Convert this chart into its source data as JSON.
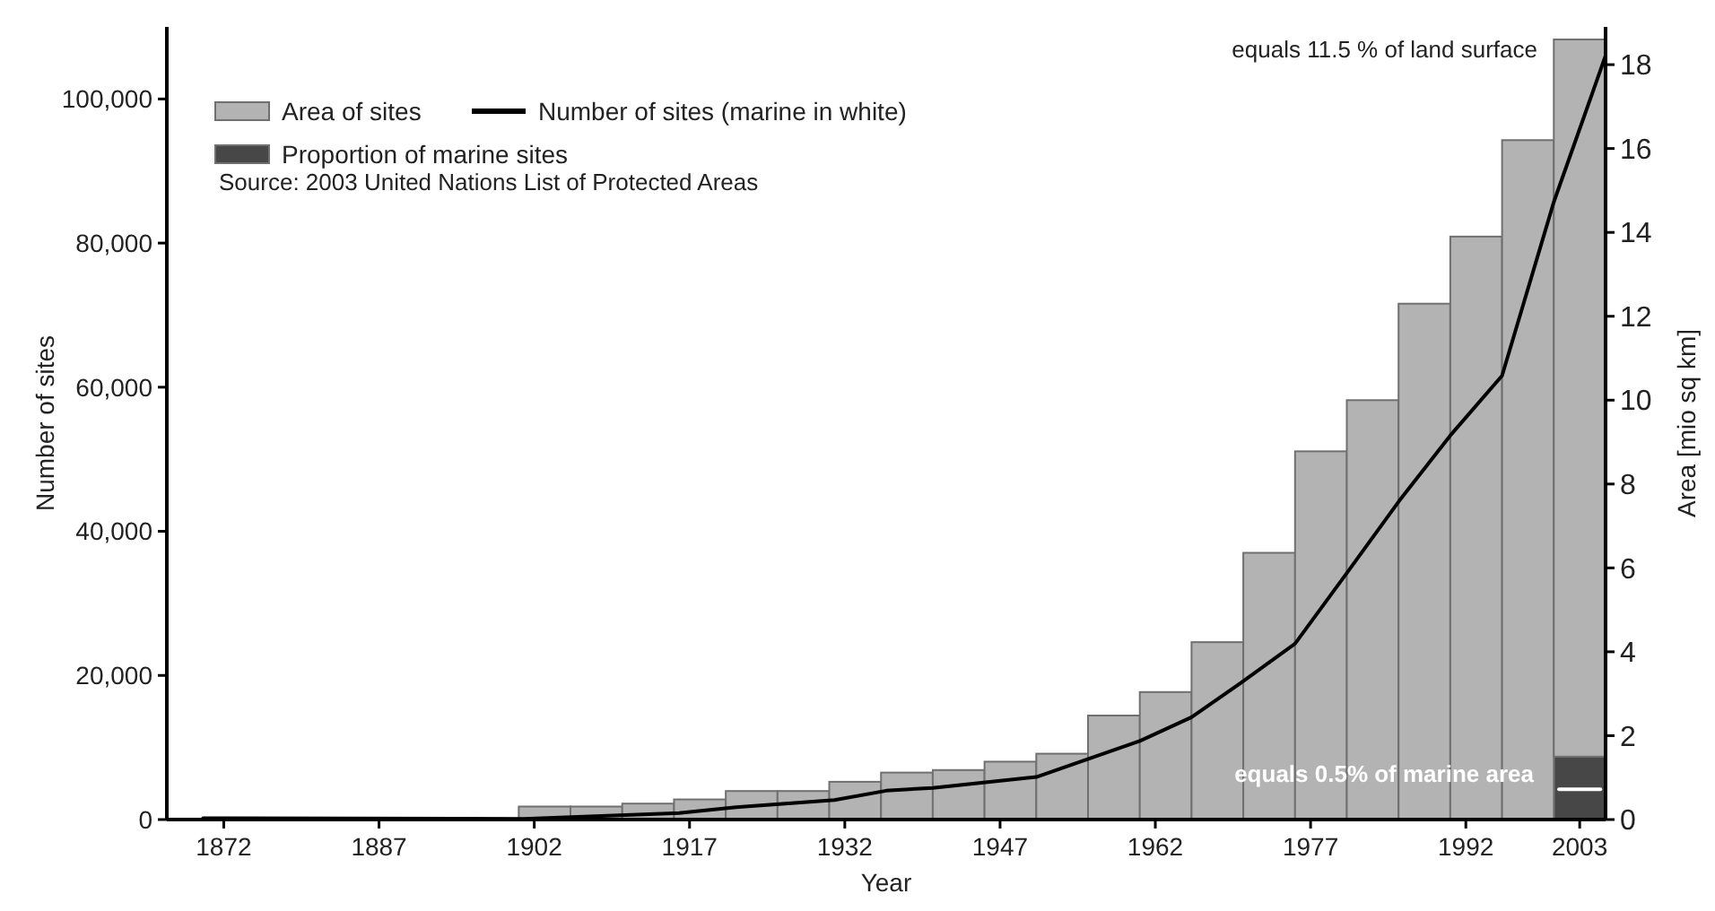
{
  "chart_data": {
    "type": "bar",
    "xlabel": "Year",
    "ylabel": "Number of sites",
    "y2label": "Area [mio sq km]",
    "x": [
      1903,
      1908,
      1913,
      1918,
      1923,
      1928,
      1933,
      1938,
      1943,
      1948,
      1953,
      1958,
      1963,
      1968,
      1973,
      1978,
      1983,
      1988,
      1993,
      1998,
      2003
    ],
    "stacked": true,
    "series": [
      {
        "name": "Proportion of marine sites",
        "axis": "y2",
        "color": "#474747",
        "values": [
          null,
          null,
          null,
          null,
          null,
          null,
          null,
          null,
          null,
          null,
          null,
          null,
          null,
          null,
          null,
          null,
          null,
          null,
          null,
          null,
          1.5
        ]
      },
      {
        "name": "Area of sites",
        "axis": "y2",
        "color": "#b3b3b3",
        "values": [
          0.31,
          0.31,
          0.38,
          0.48,
          0.68,
          0.68,
          0.9,
          1.12,
          1.18,
          1.38,
          1.57,
          2.48,
          3.04,
          4.23,
          6.36,
          8.78,
          10.0,
          12.3,
          13.9,
          16.2,
          17.1
        ]
      },
      {
        "name": "Number of sites (marine in white)",
        "type": "line",
        "color": "#000000",
        "x": [
          1870,
          1901,
          1916,
          1921.5,
          1931,
          1936,
          1940.5,
          1950.5,
          1960.5,
          1965.5,
          1970.5,
          1975.5,
          1980.5,
          1985.5,
          1990.5,
          1995.5,
          2000.5,
          2005.5
        ],
        "values": [
          200,
          100,
          900,
          1700,
          2700,
          4000,
          4400,
          5900,
          10900,
          14200,
          19200,
          24400,
          34200,
          44100,
          53300,
          61600,
          85700,
          106000
        ]
      },
      {
        "type": "line",
        "color": "#ffffff",
        "x": [
          2001,
          2005
        ],
        "values": [
          4200,
          4200
        ]
      }
    ],
    "xlim": [
      1866.5,
      2005.5
    ],
    "xticks": [
      1872,
      1887,
      1902,
      1917,
      1932,
      1947,
      1962,
      1977,
      1992,
      2003
    ],
    "ylim": [
      0,
      110000
    ],
    "yticks": [
      0,
      {
        "value": 20000,
        "label": "20,000"
      },
      {
        "value": 40000,
        "label": "40,000"
      },
      {
        "value": 60000,
        "label": "60,000"
      },
      {
        "value": 80000,
        "label": "80,000"
      },
      {
        "value": 100000,
        "label": "100,000"
      }
    ],
    "y2lim": [
      0,
      18.9
    ],
    "y2ticks": [
      0,
      2,
      4,
      6,
      8,
      10,
      12,
      14,
      16,
      18
    ],
    "grid": false,
    "legend": "top left",
    "annotations": [
      "equals 11.5 % of land surface",
      "equals 0.5% of marine area",
      "Source: 2003 United Nations List of Protected Areas"
    ]
  }
}
